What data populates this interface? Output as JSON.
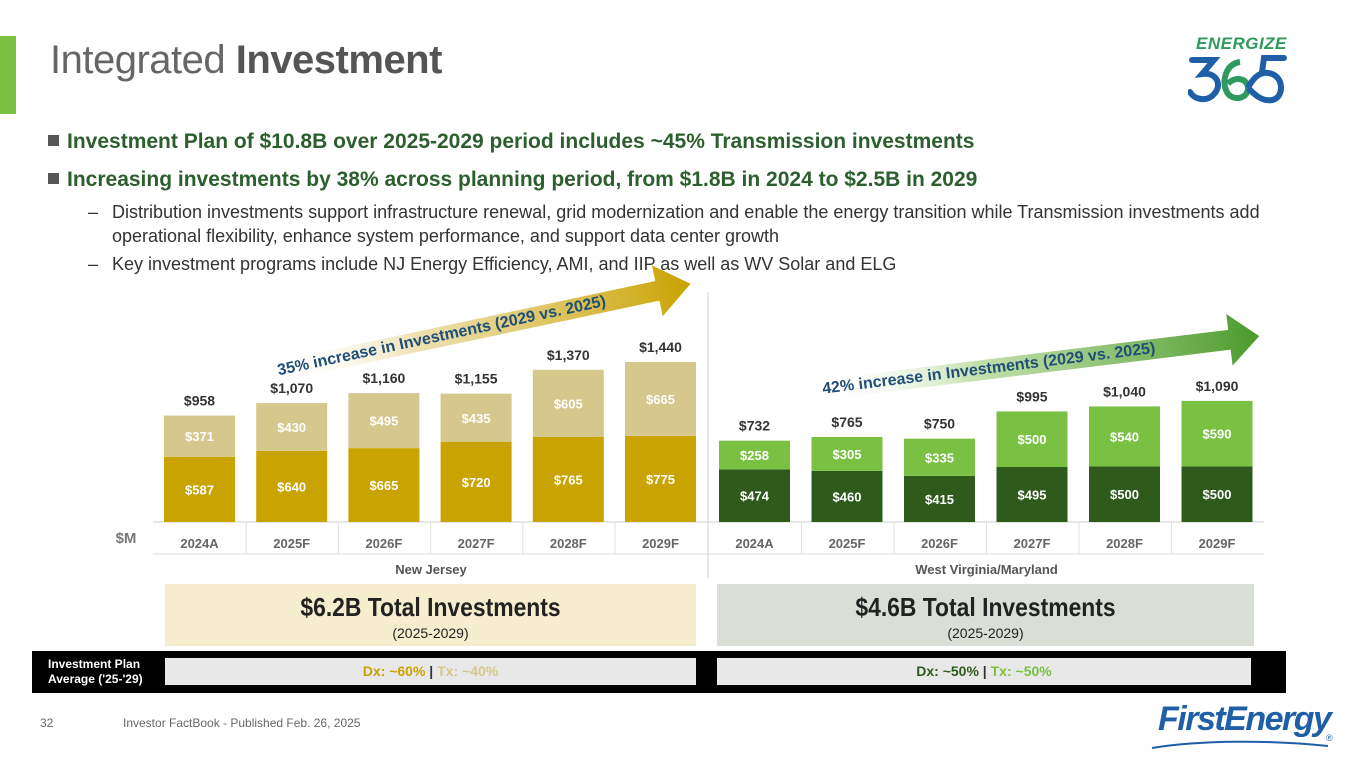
{
  "slide": {
    "title_light": "Integrated",
    "title_bold": "Investment",
    "logo_word": "ENERGIZE",
    "logo_number": "365",
    "bullets": [
      "Investment Plan of $10.8B over 2025-2029 period includes ~45% Transmission investments",
      "Increasing investments by 38% across planning period, from $1.8B in 2024 to $2.5B in 2029"
    ],
    "sub_bullets": [
      "Distribution investments support infrastructure renewal, grid modernization and enable the energy transition while Transmission investments add operational flexibility, enhance system performance, and support data center growth",
      "Key investment programs include NJ Energy Efficiency, AMI, and IIP as well as WV Solar and ELG"
    ],
    "dash": "–",
    "summary_nj_big": "$6.2B Total Investments",
    "summary_nj_small": "(2025-2029)",
    "summary_wv_big": "$4.6B Total Investments",
    "summary_wv_small": "(2025-2029)",
    "plan_label": "Investment Plan Average ('25-'29)",
    "plan_nj_dx": "Dx: ~60%",
    "plan_nj_sep": " | ",
    "plan_nj_tx": "Tx: ~40%",
    "plan_wv_dx": "Dx: ~50%",
    "plan_wv_sep": " | ",
    "plan_wv_tx": "Tx: ~50%",
    "footer_page": "32",
    "footer_text": "Investor FactBook - Published Feb. 26, 2025",
    "company_logo": "FirstEnergy",
    "company_reg": "®"
  },
  "chart_data": [
    {
      "type": "bar",
      "group": "New Jersey",
      "unit_label": "$M",
      "categories": [
        "2024A",
        "2025F",
        "2026F",
        "2027F",
        "2028F",
        "2029F"
      ],
      "series": [
        {
          "values": [
            587,
            640,
            665,
            720,
            765,
            775
          ],
          "labels": [
            "$587",
            "$640",
            "$665",
            "$720",
            "$765",
            "$775"
          ]
        },
        {
          "values": [
            371,
            430,
            495,
            435,
            605,
            665
          ],
          "labels": [
            "$371",
            "$430",
            "$495",
            "$435",
            "$605",
            "$665"
          ]
        }
      ],
      "totals": [
        "$958",
        "$1,070",
        "$1,160",
        "$1,155",
        "$1,370",
        "$1,440"
      ],
      "total_values": [
        958,
        1070,
        1160,
        1155,
        1370,
        1440
      ],
      "annotation": "35% increase in Investments (2029 vs. 2025)",
      "colors": {
        "bottom": "#c9a300",
        "top": "#d6c78c",
        "arrow": "#c9a300",
        "arrow_text": "#1f4e79"
      }
    },
    {
      "type": "bar",
      "group": "West Virginia/Maryland",
      "categories": [
        "2024A",
        "2025F",
        "2026F",
        "2027F",
        "2028F",
        "2029F"
      ],
      "series": [
        {
          "values": [
            474,
            460,
            415,
            495,
            500,
            500
          ],
          "labels": [
            "$474",
            "$460",
            "$415",
            "$495",
            "$500",
            "$500"
          ]
        },
        {
          "values": [
            258,
            305,
            335,
            500,
            540,
            590
          ],
          "labels": [
            "$258",
            "$305",
            "$335",
            "$500",
            "$540",
            "$590"
          ]
        }
      ],
      "totals": [
        "$732",
        "$765",
        "$750",
        "$995",
        "$1,040",
        "$1,090"
      ],
      "total_values": [
        732,
        765,
        750,
        995,
        1040,
        1090
      ],
      "annotation": "42% increase in Investments (2029 vs. 2025)",
      "colors": {
        "bottom": "#2e5a1c",
        "top": "#7ac143",
        "arrow": "#4a9a2a",
        "arrow_text": "#1f4e79"
      }
    }
  ]
}
